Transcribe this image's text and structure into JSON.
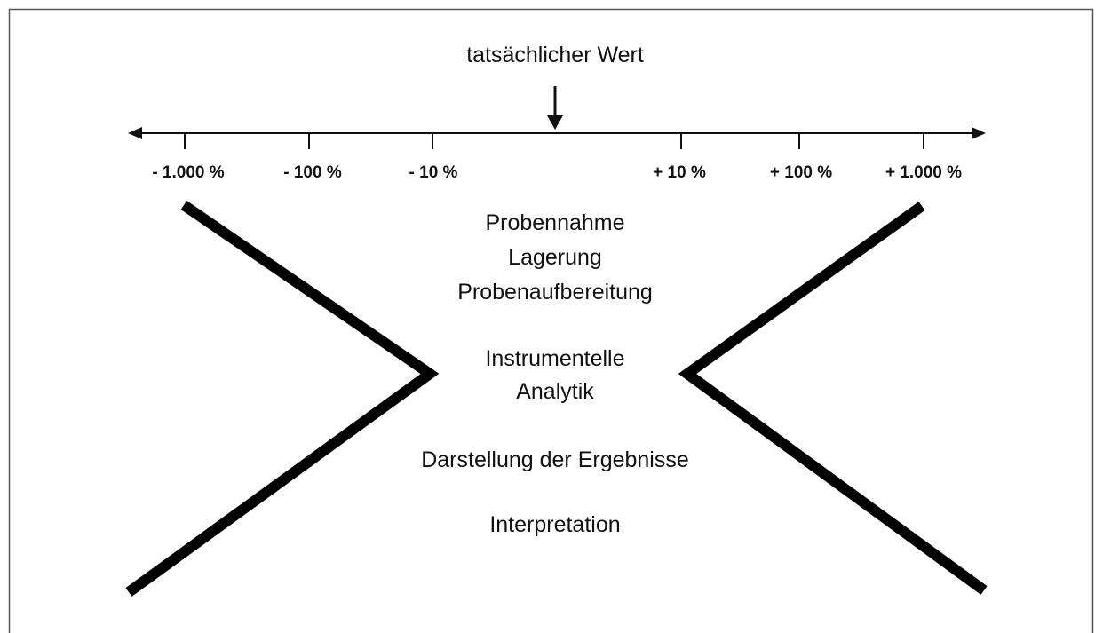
{
  "title": "tatsächlicher Wert",
  "scale_labels": [
    "- 1.000 %",
    "- 100 %",
    "- 10 %",
    "+ 10 %",
    "+ 100 %",
    "+ 1.000 %"
  ],
  "stages": [
    "Probennahme",
    "Lagerung",
    "Probenaufbereitung",
    "Instrumentelle",
    "Analytik",
    "Darstellung der Ergebnisse",
    "Interpretation"
  ]
}
